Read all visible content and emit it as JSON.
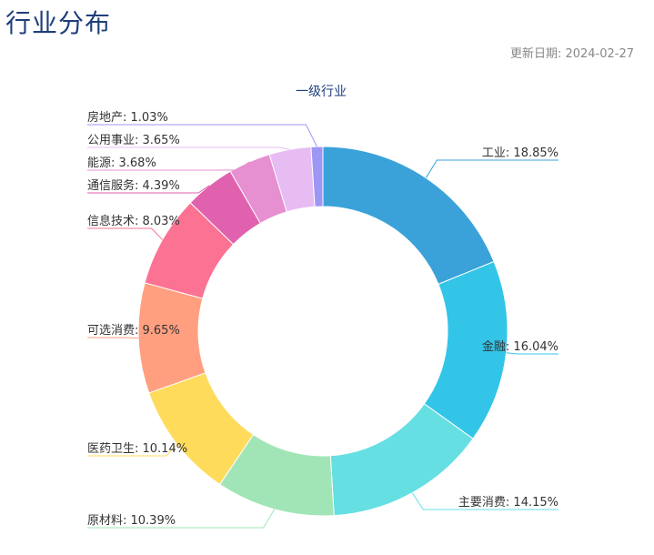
{
  "page": {
    "title": "行业分布",
    "update_date": "更新日期: 2024-02-27"
  },
  "chart_data": {
    "type": "pie",
    "title": "一级行业",
    "donut": true,
    "legend": "none",
    "slices": [
      {
        "name": "工业",
        "value": 18.85,
        "label": "工业: 18.85%",
        "color": "#3aa2d9"
      },
      {
        "name": "金融",
        "value": 16.04,
        "label": "金融: 16.04%",
        "color": "#33c5e8"
      },
      {
        "name": "主要消费",
        "value": 14.15,
        "label": "主要消费: 14.15%",
        "color": "#66dfe3"
      },
      {
        "name": "原材料",
        "value": 10.39,
        "label": "原材料: 10.39%",
        "color": "#a1e5b7"
      },
      {
        "name": "医药卫生",
        "value": 10.14,
        "label": "医药卫生: 10.14%",
        "color": "#ffdb5c"
      },
      {
        "name": "可选消费",
        "value": 9.65,
        "label": "可选消费: 9.65%",
        "color": "#ff9f7f"
      },
      {
        "name": "信息技术",
        "value": 8.03,
        "label": "信息技术: 8.03%",
        "color": "#fb7293"
      },
      {
        "name": "通信服务",
        "value": 4.39,
        "label": "通信服务: 4.39%",
        "color": "#e062ae"
      },
      {
        "name": "能源",
        "value": 3.68,
        "label": "能源: 3.68%",
        "color": "#e690d1"
      },
      {
        "name": "公用事业",
        "value": 3.65,
        "label": "公用事业: 3.65%",
        "color": "#e7bcf3"
      },
      {
        "name": "房地产",
        "value": 1.03,
        "label": "房地产: 1.03%",
        "color": "#9d96f5"
      }
    ]
  }
}
